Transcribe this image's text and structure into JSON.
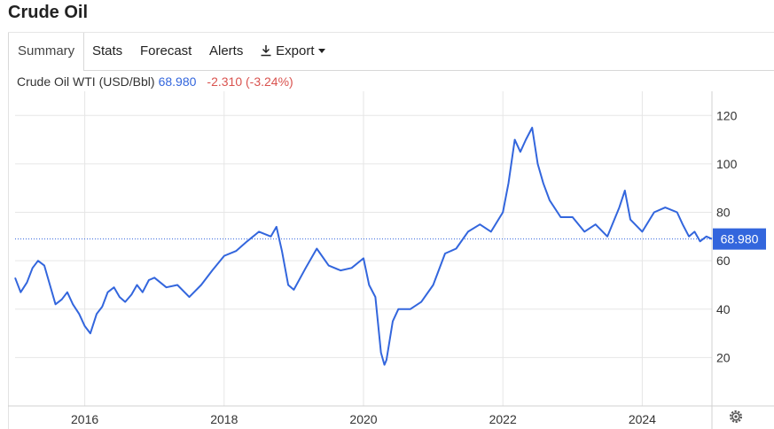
{
  "page": {
    "title": "Crude Oil"
  },
  "tabs": [
    {
      "label": "Summary",
      "active": true
    },
    {
      "label": "Stats"
    },
    {
      "label": "Forecast"
    },
    {
      "label": "Alerts"
    },
    {
      "label": "Export",
      "icon": "download-icon"
    }
  ],
  "quote": {
    "name": "Crude Oil WTI (USD/Bbl)",
    "price": "68.980",
    "change": "-2.310 (-3.24%)"
  },
  "settings": {
    "icon": "gear-icon"
  },
  "colors": {
    "line": "#3366dd",
    "change_negative": "#d9534f",
    "grid": "#e6e6e6"
  },
  "chart_data": {
    "type": "line",
    "title": "",
    "xlabel": "",
    "ylabel": "",
    "xlim": [
      2015.0,
      2025.0
    ],
    "ylim": [
      0,
      130
    ],
    "yticks": [
      20,
      40,
      60,
      80,
      100,
      120
    ],
    "xticks": [
      2016,
      2018,
      2020,
      2022,
      2024
    ],
    "axis_position": "right",
    "grid": true,
    "last_value_label": "68.980",
    "series": [
      {
        "x": [
          2015.0,
          2015.08,
          2015.17,
          2015.25,
          2015.33,
          2015.42,
          2015.5,
          2015.58,
          2015.67,
          2015.75,
          2015.83,
          2015.92,
          2016.0,
          2016.08,
          2016.17,
          2016.25,
          2016.33,
          2016.42,
          2016.5,
          2016.58,
          2016.67,
          2016.75,
          2016.83,
          2016.92,
          2017.0,
          2017.17,
          2017.33,
          2017.5,
          2017.67,
          2017.83,
          2018.0,
          2018.17,
          2018.33,
          2018.5,
          2018.67,
          2018.75,
          2018.83,
          2018.92,
          2019.0,
          2019.17,
          2019.33,
          2019.5,
          2019.67,
          2019.83,
          2020.0,
          2020.08,
          2020.17,
          2020.25,
          2020.3,
          2020.33,
          2020.42,
          2020.5,
          2020.67,
          2020.83,
          2021.0,
          2021.17,
          2021.33,
          2021.5,
          2021.67,
          2021.83,
          2022.0,
          2022.08,
          2022.17,
          2022.25,
          2022.33,
          2022.42,
          2022.5,
          2022.58,
          2022.67,
          2022.83,
          2023.0,
          2023.17,
          2023.33,
          2023.5,
          2023.67,
          2023.75,
          2023.83,
          2024.0,
          2024.17,
          2024.33,
          2024.5,
          2024.58,
          2024.67,
          2024.75,
          2024.83,
          2024.92,
          2025.0
        ],
        "values": [
          53,
          47,
          51,
          57,
          60,
          58,
          50,
          42,
          44,
          47,
          42,
          38,
          33,
          30,
          38,
          41,
          47,
          49,
          45,
          43,
          46,
          50,
          47,
          52,
          53,
          49,
          50,
          45,
          50,
          56,
          62,
          64,
          68,
          72,
          70,
          74,
          64,
          50,
          48,
          57,
          65,
          58,
          56,
          57,
          61,
          50,
          45,
          22,
          17,
          19,
          35,
          40,
          40,
          43,
          50,
          63,
          65,
          72,
          75,
          72,
          80,
          92,
          110,
          105,
          110,
          115,
          100,
          92,
          85,
          78,
          78,
          72,
          75,
          70,
          82,
          89,
          77,
          72,
          80,
          82,
          80,
          75,
          70,
          72,
          68,
          70,
          68.98
        ]
      }
    ]
  }
}
